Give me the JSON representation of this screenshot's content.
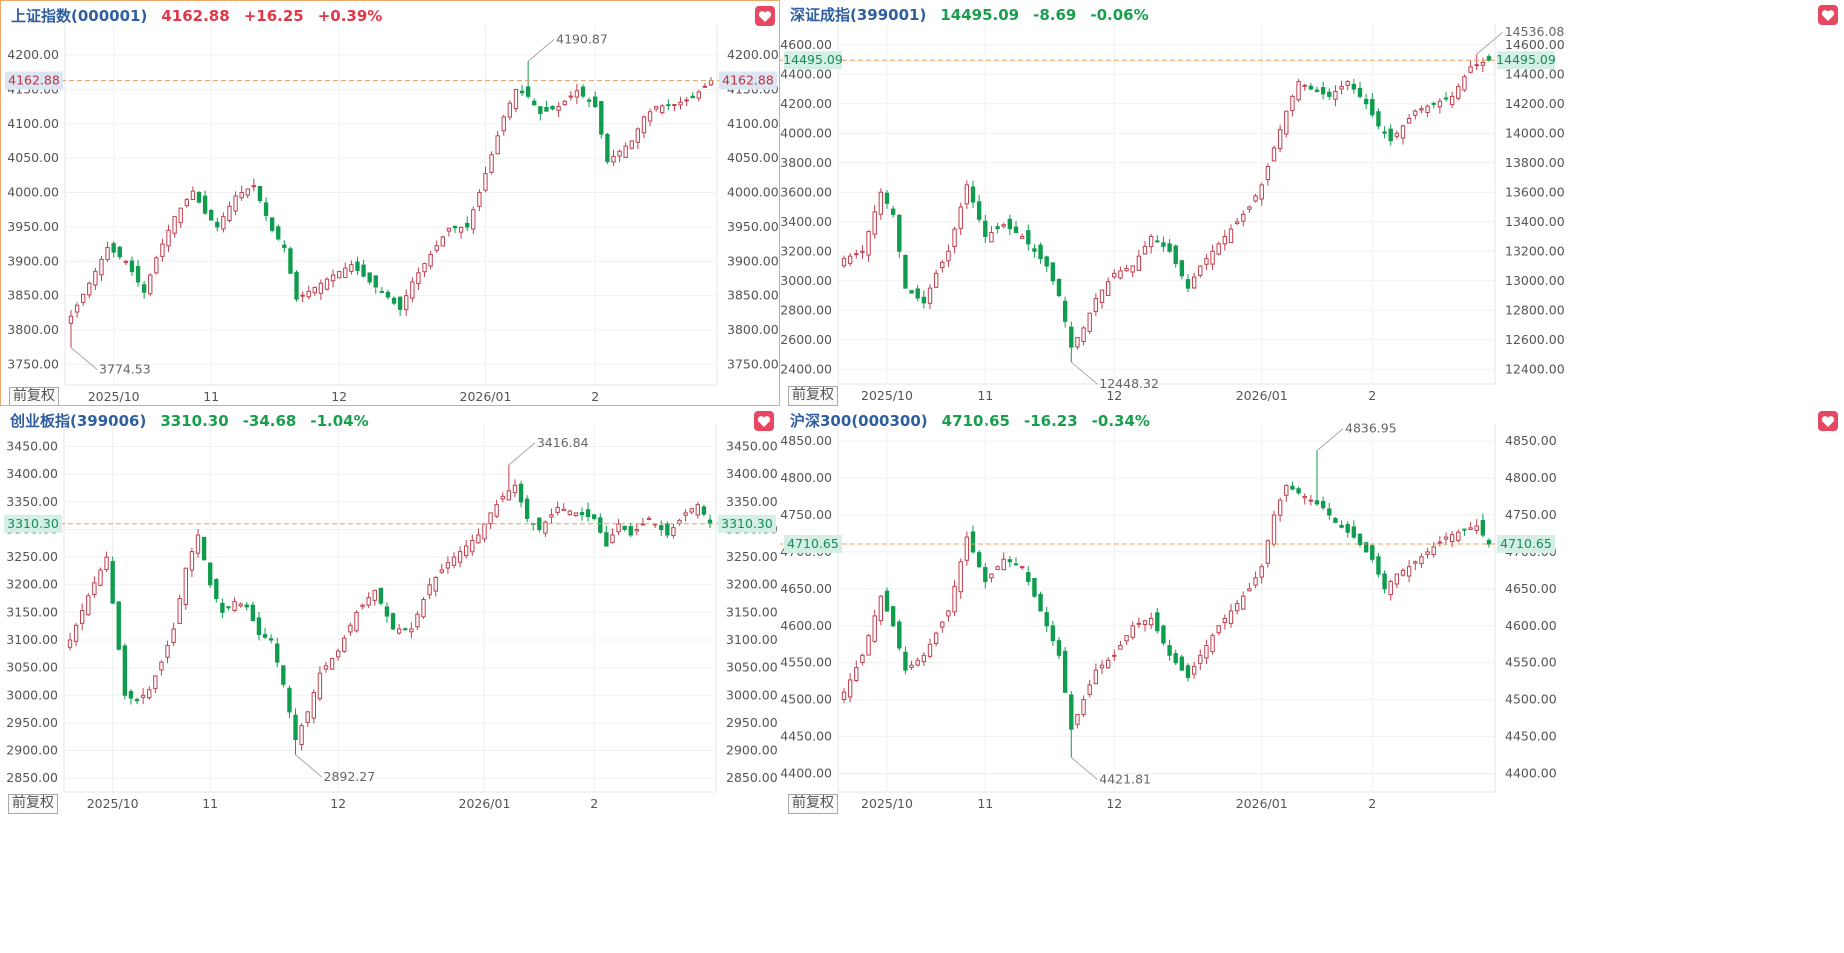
{
  "ui": {
    "adjust_label": "前复权"
  },
  "colors": {
    "up": "#c0404f",
    "down": "#0f9c4e",
    "neutral_up": "#e0384a",
    "neutral_down": "#1a9e4e",
    "name": "#2f5f9e",
    "ref_line": "#e0a060"
  },
  "panels": [
    {
      "name": "上证指数",
      "code": "(000001)",
      "price": "4162.88",
      "change": "+16.25",
      "pct": "+0.39%",
      "direction": "up",
      "selected": true,
      "chart_data": {
        "type": "candlestick",
        "y_ticks": [
          "4200.00",
          "4150.00",
          "4100.00",
          "4050.00",
          "4000.00",
          "3950.00",
          "3900.00",
          "3850.00",
          "3800.00",
          "3750.00"
        ],
        "y_tick_values": [
          4200,
          4150,
          4100,
          4050,
          4000,
          3950,
          3900,
          3850,
          3800,
          3750
        ],
        "ylim": [
          3720,
          4235
        ],
        "x_ticks": [
          {
            "label": "2025/10",
            "i": 7
          },
          {
            "label": "11",
            "i": 23
          },
          {
            "label": "12",
            "i": 44
          },
          {
            "label": "2026/01",
            "i": 68
          },
          {
            "label": "2",
            "i": 86
          }
        ],
        "n": 106,
        "reference": {
          "value": 4162.88,
          "label": "4162.88"
        },
        "high": {
          "value": 4190.87,
          "label": "4190.87",
          "i": 75
        },
        "low": {
          "value": 3774.53,
          "label": "3774.53",
          "i": 0
        },
        "anchors": [
          [
            0,
            3820
          ],
          [
            3,
            3868
          ],
          [
            6,
            3920
          ],
          [
            9,
            3900
          ],
          [
            12,
            3855
          ],
          [
            14,
            3905
          ],
          [
            17,
            3965
          ],
          [
            20,
            4002
          ],
          [
            22,
            3970
          ],
          [
            24,
            3950
          ],
          [
            27,
            3995
          ],
          [
            30,
            4010
          ],
          [
            33,
            3945
          ],
          [
            35,
            3920
          ],
          [
            37,
            3845
          ],
          [
            40,
            3862
          ],
          [
            43,
            3880
          ],
          [
            46,
            3895
          ],
          [
            49,
            3870
          ],
          [
            52,
            3848
          ],
          [
            54,
            3830
          ],
          [
            56,
            3870
          ],
          [
            59,
            3910
          ],
          [
            62,
            3948
          ],
          [
            65,
            3950
          ],
          [
            67,
            4000
          ],
          [
            69,
            4055
          ],
          [
            71,
            4110
          ],
          [
            73,
            4150
          ],
          [
            75,
            4140
          ],
          [
            77,
            4115
          ],
          [
            80,
            4125
          ],
          [
            83,
            4148
          ],
          [
            86,
            4125
          ],
          [
            88,
            4045
          ],
          [
            90,
            4060
          ],
          [
            92,
            4075
          ],
          [
            94,
            4110
          ],
          [
            96,
            4125
          ],
          [
            99,
            4128
          ],
          [
            102,
            4138
          ],
          [
            105,
            4162.88
          ]
        ]
      }
    },
    {
      "name": "深证成指",
      "code": "(399001)",
      "price": "14495.09",
      "change": "-8.69",
      "pct": "-0.06%",
      "direction": "down",
      "selected": false,
      "chart_data": {
        "type": "candlestick",
        "y_ticks": [
          "14600.00",
          "14400.00",
          "14200.00",
          "14000.00",
          "13800.00",
          "13600.00",
          "13400.00",
          "13200.00",
          "13000.00",
          "12800.00",
          "12600.00",
          "12400.00"
        ],
        "y_tick_values": [
          14600,
          14400,
          14200,
          14000,
          13800,
          13600,
          13400,
          13200,
          13000,
          12800,
          12600,
          12400
        ],
        "ylim": [
          12300,
          14700
        ],
        "x_ticks": [
          {
            "label": "2025/10",
            "i": 7
          },
          {
            "label": "11",
            "i": 23
          },
          {
            "label": "12",
            "i": 44
          },
          {
            "label": "2026/01",
            "i": 68
          },
          {
            "label": "2",
            "i": 86
          }
        ],
        "n": 106,
        "reference": {
          "value": 14495.09,
          "label": "14495.09"
        },
        "high": {
          "value": 14536.08,
          "label": "14536.08",
          "i": 103
        },
        "low": {
          "value": 12448.32,
          "label": "12448.32",
          "i": 37
        },
        "anchors": [
          [
            0,
            13150
          ],
          [
            3,
            13200
          ],
          [
            6,
            13600
          ],
          [
            8,
            13450
          ],
          [
            10,
            12950
          ],
          [
            13,
            12850
          ],
          [
            15,
            13050
          ],
          [
            17,
            13200
          ],
          [
            20,
            13650
          ],
          [
            23,
            13300
          ],
          [
            26,
            13380
          ],
          [
            29,
            13300
          ],
          [
            31,
            13200
          ],
          [
            33,
            13100
          ],
          [
            35,
            12900
          ],
          [
            37,
            12550
          ],
          [
            39,
            12680
          ],
          [
            41,
            12880
          ],
          [
            44,
            13050
          ],
          [
            47,
            13100
          ],
          [
            50,
            13300
          ],
          [
            53,
            13200
          ],
          [
            56,
            12950
          ],
          [
            58,
            13100
          ],
          [
            61,
            13250
          ],
          [
            64,
            13400
          ],
          [
            66,
            13500
          ],
          [
            68,
            13650
          ],
          [
            70,
            13900
          ],
          [
            72,
            14150
          ],
          [
            74,
            14350
          ],
          [
            76,
            14300
          ],
          [
            79,
            14250
          ],
          [
            82,
            14350
          ],
          [
            85,
            14200
          ],
          [
            87,
            14050
          ],
          [
            89,
            13950
          ],
          [
            91,
            14050
          ],
          [
            93,
            14150
          ],
          [
            96,
            14200
          ],
          [
            99,
            14250
          ],
          [
            102,
            14450
          ],
          [
            105,
            14495.09
          ]
        ]
      }
    },
    {
      "name": "创业板指",
      "code": "(399006)",
      "price": "3310.30",
      "change": "-34.68",
      "pct": "-1.04%",
      "direction": "down",
      "selected": false,
      "chart_data": {
        "type": "candlestick",
        "y_ticks": [
          "3450.00",
          "3400.00",
          "3350.00",
          "3300.00",
          "3250.00",
          "3200.00",
          "3150.00",
          "3100.00",
          "3050.00",
          "3000.00",
          "2950.00",
          "2900.00",
          "2850.00"
        ],
        "y_tick_values": [
          3450,
          3400,
          3350,
          3300,
          3250,
          3200,
          3150,
          3100,
          3050,
          3000,
          2950,
          2900,
          2850
        ],
        "ylim": [
          2825,
          3480
        ],
        "x_ticks": [
          {
            "label": "2025/10",
            "i": 7
          },
          {
            "label": "11",
            "i": 23
          },
          {
            "label": "12",
            "i": 44
          },
          {
            "label": "2026/01",
            "i": 68
          },
          {
            "label": "2",
            "i": 86
          }
        ],
        "n": 106,
        "reference": {
          "value": 3310.3,
          "label": "3310.30"
        },
        "high": {
          "value": 3416.84,
          "label": "3416.84",
          "i": 72
        },
        "low": {
          "value": 2892.27,
          "label": "2892.27",
          "i": 37
        },
        "anchors": [
          [
            0,
            3100
          ],
          [
            3,
            3180
          ],
          [
            6,
            3250
          ],
          [
            9,
            3000
          ],
          [
            11,
            2990
          ],
          [
            13,
            3010
          ],
          [
            15,
            3060
          ],
          [
            17,
            3120
          ],
          [
            19,
            3230
          ],
          [
            21,
            3290
          ],
          [
            23,
            3200
          ],
          [
            25,
            3150
          ],
          [
            27,
            3170
          ],
          [
            29,
            3160
          ],
          [
            31,
            3110
          ],
          [
            33,
            3100
          ],
          [
            35,
            3020
          ],
          [
            37,
            2920
          ],
          [
            39,
            2970
          ],
          [
            41,
            3040
          ],
          [
            44,
            3080
          ],
          [
            47,
            3150
          ],
          [
            50,
            3190
          ],
          [
            53,
            3120
          ],
          [
            56,
            3120
          ],
          [
            59,
            3200
          ],
          [
            62,
            3240
          ],
          [
            65,
            3270
          ],
          [
            67,
            3290
          ],
          [
            69,
            3330
          ],
          [
            71,
            3360
          ],
          [
            73,
            3380
          ],
          [
            75,
            3320
          ],
          [
            77,
            3300
          ],
          [
            80,
            3340
          ],
          [
            83,
            3330
          ],
          [
            86,
            3320
          ],
          [
            88,
            3270
          ],
          [
            90,
            3310
          ],
          [
            92,
            3290
          ],
          [
            95,
            3320
          ],
          [
            98,
            3290
          ],
          [
            101,
            3330
          ],
          [
            103,
            3345
          ],
          [
            105,
            3310.3
          ]
        ]
      }
    },
    {
      "name": "沪深300",
      "code": "(000300)",
      "price": "4710.65",
      "change": "-16.23",
      "pct": "-0.34%",
      "direction": "down",
      "selected": false,
      "chart_data": {
        "type": "candlestick",
        "y_ticks": [
          "4850.00",
          "4800.00",
          "4750.00",
          "4700.00",
          "4650.00",
          "4600.00",
          "4550.00",
          "4500.00",
          "4450.00",
          "4400.00"
        ],
        "y_tick_values": [
          4850,
          4800,
          4750,
          4700,
          4650,
          4600,
          4550,
          4500,
          4450,
          4400
        ],
        "ylim": [
          4375,
          4865
        ],
        "x_ticks": [
          {
            "label": "2025/10",
            "i": 7
          },
          {
            "label": "11",
            "i": 23
          },
          {
            "label": "12",
            "i": 44
          },
          {
            "label": "2026/01",
            "i": 68
          },
          {
            "label": "2",
            "i": 86
          }
        ],
        "n": 106,
        "reference": {
          "value": 4710.65,
          "label": "4710.65"
        },
        "high": {
          "value": 4836.95,
          "label": "4836.95",
          "i": 77
        },
        "low": {
          "value": 4421.81,
          "label": "4421.81",
          "i": 37
        },
        "anchors": [
          [
            0,
            4510
          ],
          [
            3,
            4560
          ],
          [
            6,
            4640
          ],
          [
            8,
            4600
          ],
          [
            10,
            4540
          ],
          [
            13,
            4560
          ],
          [
            15,
            4590
          ],
          [
            17,
            4620
          ],
          [
            20,
            4720
          ],
          [
            23,
            4660
          ],
          [
            26,
            4690
          ],
          [
            29,
            4680
          ],
          [
            31,
            4640
          ],
          [
            33,
            4600
          ],
          [
            35,
            4560
          ],
          [
            37,
            4460
          ],
          [
            39,
            4500
          ],
          [
            41,
            4540
          ],
          [
            44,
            4560
          ],
          [
            47,
            4600
          ],
          [
            50,
            4610
          ],
          [
            53,
            4560
          ],
          [
            56,
            4530
          ],
          [
            58,
            4560
          ],
          [
            61,
            4600
          ],
          [
            64,
            4630
          ],
          [
            66,
            4650
          ],
          [
            68,
            4680
          ],
          [
            70,
            4750
          ],
          [
            72,
            4790
          ],
          [
            74,
            4780
          ],
          [
            76,
            4770
          ],
          [
            78,
            4760
          ],
          [
            80,
            4740
          ],
          [
            83,
            4720
          ],
          [
            86,
            4690
          ],
          [
            88,
            4650
          ],
          [
            90,
            4670
          ],
          [
            92,
            4680
          ],
          [
            95,
            4700
          ],
          [
            98,
            4720
          ],
          [
            101,
            4730
          ],
          [
            103,
            4735
          ],
          [
            105,
            4710.65
          ]
        ]
      }
    }
  ]
}
